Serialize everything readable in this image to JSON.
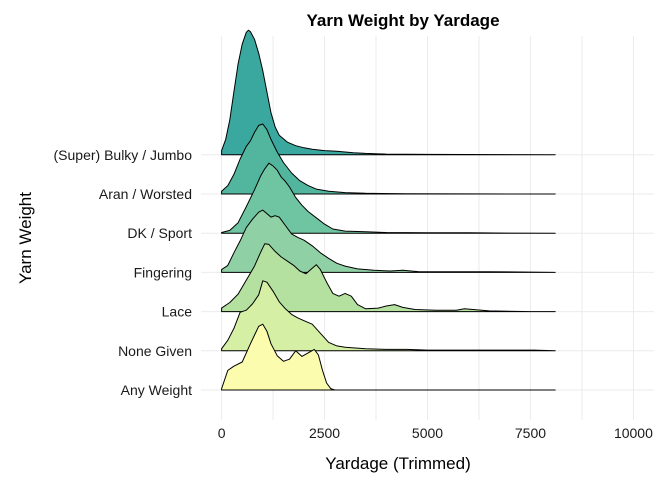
{
  "chart_data": {
    "type": "ridgeline",
    "title": "Yarn Weight by Yardage",
    "xlabel": "Yardage (Trimmed)",
    "ylabel": "Yarn Weight",
    "xlim": [
      -500,
      10500
    ],
    "x_ticks": [
      0,
      2500,
      5000,
      7500,
      10000
    ],
    "x_tick_labels": [
      "0",
      "2500",
      "5000",
      "7500",
      "10000"
    ],
    "grid": true,
    "series": [
      {
        "name": "Any Weight",
        "fill": "#FCFCAE",
        "density": [
          [
            0,
            0.02
          ],
          [
            150,
            0.28
          ],
          [
            300,
            0.34
          ],
          [
            500,
            0.4
          ],
          [
            700,
            0.66
          ],
          [
            900,
            0.91
          ],
          [
            1000,
            0.94
          ],
          [
            1100,
            0.84
          ],
          [
            1200,
            0.66
          ],
          [
            1350,
            0.49
          ],
          [
            1500,
            0.41
          ],
          [
            1650,
            0.44
          ],
          [
            1800,
            0.56
          ],
          [
            1950,
            0.48
          ],
          [
            2100,
            0.53
          ],
          [
            2250,
            0.58
          ],
          [
            2350,
            0.5
          ],
          [
            2450,
            0.28
          ],
          [
            2550,
            0.1
          ],
          [
            2650,
            0.02
          ],
          [
            2750,
            0.0
          ],
          [
            8100,
            0.0
          ]
        ]
      },
      {
        "name": "None Given",
        "fill": "#D5EFA4",
        "density": [
          [
            0,
            0.03
          ],
          [
            150,
            0.15
          ],
          [
            300,
            0.32
          ],
          [
            450,
            0.55
          ],
          [
            600,
            0.58
          ],
          [
            750,
            0.67
          ],
          [
            900,
            0.8
          ],
          [
            1000,
            1.0
          ],
          [
            1100,
            0.98
          ],
          [
            1250,
            0.85
          ],
          [
            1400,
            0.7
          ],
          [
            1550,
            0.6
          ],
          [
            1700,
            0.52
          ],
          [
            1850,
            0.47
          ],
          [
            2000,
            0.43
          ],
          [
            2200,
            0.38
          ],
          [
            2400,
            0.25
          ],
          [
            2600,
            0.12
          ],
          [
            2800,
            0.07
          ],
          [
            3000,
            0.05
          ],
          [
            3500,
            0.03
          ],
          [
            4000,
            0.02
          ],
          [
            4500,
            0.02
          ],
          [
            5000,
            0.01
          ],
          [
            6000,
            0.01
          ],
          [
            7000,
            0.01
          ],
          [
            7600,
            0.01
          ],
          [
            8100,
            0.0
          ]
        ]
      },
      {
        "name": "Lace",
        "fill": "#B4E0A0",
        "density": [
          [
            0,
            0.05
          ],
          [
            200,
            0.13
          ],
          [
            400,
            0.25
          ],
          [
            600,
            0.45
          ],
          [
            800,
            0.65
          ],
          [
            950,
            0.85
          ],
          [
            1050,
            0.97
          ],
          [
            1150,
            0.96
          ],
          [
            1300,
            0.86
          ],
          [
            1450,
            0.78
          ],
          [
            1600,
            0.72
          ],
          [
            1750,
            0.66
          ],
          [
            1900,
            0.58
          ],
          [
            2050,
            0.54
          ],
          [
            2200,
            0.62
          ],
          [
            2300,
            0.67
          ],
          [
            2400,
            0.6
          ],
          [
            2550,
            0.42
          ],
          [
            2700,
            0.26
          ],
          [
            2850,
            0.22
          ],
          [
            3000,
            0.26
          ],
          [
            3150,
            0.22
          ],
          [
            3300,
            0.1
          ],
          [
            3500,
            0.04
          ],
          [
            3800,
            0.05
          ],
          [
            4000,
            0.08
          ],
          [
            4200,
            0.1
          ],
          [
            4400,
            0.06
          ],
          [
            4700,
            0.03
          ],
          [
            5200,
            0.02
          ],
          [
            5700,
            0.02
          ],
          [
            5900,
            0.04
          ],
          [
            6100,
            0.03
          ],
          [
            6500,
            0.01
          ],
          [
            7500,
            0.0
          ],
          [
            8100,
            0.0
          ]
        ]
      },
      {
        "name": "Fingering",
        "fill": "#8FD1A4",
        "density": [
          [
            0,
            0.04
          ],
          [
            150,
            0.1
          ],
          [
            300,
            0.28
          ],
          [
            450,
            0.45
          ],
          [
            600,
            0.64
          ],
          [
            750,
            0.76
          ],
          [
            900,
            0.86
          ],
          [
            1000,
            0.89
          ],
          [
            1100,
            0.84
          ],
          [
            1200,
            0.79
          ],
          [
            1300,
            0.81
          ],
          [
            1400,
            0.79
          ],
          [
            1550,
            0.67
          ],
          [
            1700,
            0.55
          ],
          [
            1850,
            0.5
          ],
          [
            2000,
            0.46
          ],
          [
            2200,
            0.38
          ],
          [
            2400,
            0.28
          ],
          [
            2600,
            0.2
          ],
          [
            2800,
            0.13
          ],
          [
            3000,
            0.09
          ],
          [
            3300,
            0.05
          ],
          [
            3700,
            0.03
          ],
          [
            4100,
            0.02
          ],
          [
            4400,
            0.03
          ],
          [
            4800,
            0.01
          ],
          [
            5500,
            0.01
          ],
          [
            6500,
            0.01
          ],
          [
            8100,
            0.0
          ]
        ]
      },
      {
        "name": "DK / Sport",
        "fill": "#6FC4A1",
        "density": [
          [
            0,
            0.01
          ],
          [
            200,
            0.04
          ],
          [
            400,
            0.15
          ],
          [
            600,
            0.38
          ],
          [
            800,
            0.62
          ],
          [
            950,
            0.82
          ],
          [
            1050,
            0.92
          ],
          [
            1150,
            1.0
          ],
          [
            1250,
            0.96
          ],
          [
            1350,
            0.9
          ],
          [
            1450,
            0.8
          ],
          [
            1550,
            0.74
          ],
          [
            1650,
            0.66
          ],
          [
            1800,
            0.51
          ],
          [
            1950,
            0.4
          ],
          [
            2100,
            0.31
          ],
          [
            2300,
            0.22
          ],
          [
            2500,
            0.13
          ],
          [
            2700,
            0.06
          ],
          [
            3000,
            0.03
          ],
          [
            3500,
            0.02
          ],
          [
            4000,
            0.01
          ],
          [
            5000,
            0.005
          ],
          [
            6000,
            0.005
          ],
          [
            7000,
            0.002
          ],
          [
            8100,
            0.0
          ]
        ]
      },
      {
        "name": "Aran / Worsted",
        "fill": "#52B69F",
        "density": [
          [
            0,
            0.04
          ],
          [
            150,
            0.12
          ],
          [
            300,
            0.28
          ],
          [
            450,
            0.5
          ],
          [
            600,
            0.68
          ],
          [
            700,
            0.76
          ],
          [
            800,
            0.88
          ],
          [
            900,
            0.98
          ],
          [
            1000,
            1.0
          ],
          [
            1100,
            0.92
          ],
          [
            1200,
            0.78
          ],
          [
            1350,
            0.6
          ],
          [
            1500,
            0.45
          ],
          [
            1700,
            0.3
          ],
          [
            1900,
            0.19
          ],
          [
            2100,
            0.12
          ],
          [
            2300,
            0.07
          ],
          [
            2600,
            0.04
          ],
          [
            3000,
            0.02
          ],
          [
            3500,
            0.01
          ],
          [
            4500,
            0.005
          ],
          [
            6000,
            0.002
          ],
          [
            8100,
            0.0
          ]
        ]
      },
      {
        "name": "(Super) Bulky / Jumbo",
        "fill": "#3BA8A0",
        "density": [
          [
            0,
            0.06
          ],
          [
            100,
            0.22
          ],
          [
            200,
            0.5
          ],
          [
            300,
            0.9
          ],
          [
            400,
            1.3
          ],
          [
            500,
            1.58
          ],
          [
            600,
            1.75
          ],
          [
            650,
            1.78
          ],
          [
            700,
            1.76
          ],
          [
            800,
            1.65
          ],
          [
            900,
            1.45
          ],
          [
            1000,
            1.2
          ],
          [
            1100,
            0.9
          ],
          [
            1200,
            0.6
          ],
          [
            1300,
            0.4
          ],
          [
            1400,
            0.28
          ],
          [
            1600,
            0.18
          ],
          [
            1800,
            0.13
          ],
          [
            2000,
            0.1
          ],
          [
            2200,
            0.08
          ],
          [
            2500,
            0.06
          ],
          [
            2800,
            0.05
          ],
          [
            3000,
            0.04
          ],
          [
            3200,
            0.03
          ],
          [
            3500,
            0.02
          ],
          [
            4000,
            0.01
          ],
          [
            5000,
            0.005
          ],
          [
            8100,
            0.0
          ]
        ]
      }
    ]
  }
}
